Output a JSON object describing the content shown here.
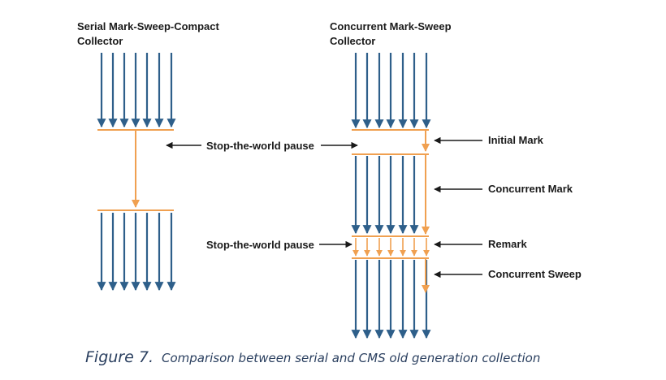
{
  "titles": {
    "serial_line1": "Serial Mark-Sweep-Compact",
    "serial_line2": "Collector",
    "cms_line1": "Concurrent Mark-Sweep",
    "cms_line2": "Collector"
  },
  "labels": {
    "stw_pause_1": "Stop-the-world pause",
    "stw_pause_2": "Stop-the-world pause",
    "initial_mark": "Initial Mark",
    "concurrent_mark": "Concurrent Mark",
    "remark": "Remark",
    "concurrent_sweep": "Concurrent Sweep"
  },
  "caption": {
    "figure": "Figure 7.",
    "text": "Comparison between serial and CMS old generation collection"
  },
  "colors": {
    "thread_arrow": "#2e5f8a",
    "gc_line": "#f0a050",
    "pointer_arrow": "#1a1a1a"
  }
}
